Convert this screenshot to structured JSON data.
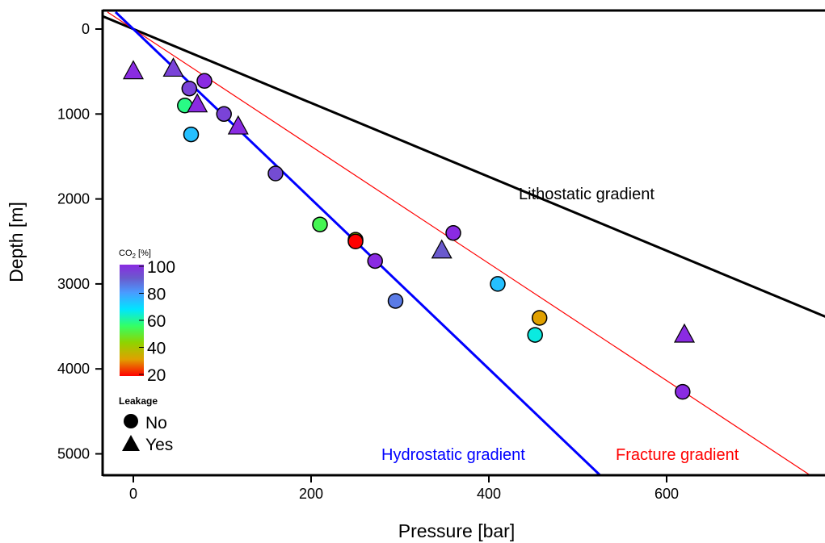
{
  "chart_data": {
    "type": "scatter",
    "xlabel": "Pressure [bar]",
    "ylabel": "Depth [m]",
    "xlim": [
      -35,
      780
    ],
    "ylim": [
      5250,
      -200
    ],
    "x_ticks": [
      0,
      200,
      400,
      600
    ],
    "y_ticks": [
      0,
      1000,
      2000,
      3000,
      4000,
      5000
    ],
    "y_inverted": true,
    "grid": false,
    "gradients": [
      {
        "name": "Lithostatic gradient",
        "color": "#000000",
        "pressure_per_m": 0.23
      },
      {
        "name": "Fracture gradient",
        "color": "#ff0000",
        "pressure_per_m": 0.145
      },
      {
        "name": "Hydrostatic gradient",
        "color": "#0000ff",
        "pressure_per_m": 0.1
      }
    ],
    "colorbar": {
      "title_main": "CO",
      "title_sub": "2",
      "title_unit": " [%]",
      "min": 20,
      "max": 100,
      "ticks": [
        100,
        80,
        60,
        40,
        20
      ]
    },
    "leakage_legend": {
      "title": "Leakage",
      "items": [
        {
          "label": "No",
          "marker": "circle"
        },
        {
          "label": "Yes",
          "marker": "triangle"
        }
      ]
    },
    "points": [
      {
        "pressure": 0,
        "depth": 490,
        "co2": 100,
        "leakage": "Yes"
      },
      {
        "pressure": 45,
        "depth": 460,
        "co2": 95,
        "leakage": "Yes"
      },
      {
        "pressure": 63,
        "depth": 700,
        "co2": 95,
        "leakage": "No"
      },
      {
        "pressure": 80,
        "depth": 610,
        "co2": 100,
        "leakage": "No"
      },
      {
        "pressure": 58,
        "depth": 900,
        "co2": 62,
        "leakage": "No"
      },
      {
        "pressure": 72,
        "depth": 880,
        "co2": 100,
        "leakage": "Yes"
      },
      {
        "pressure": 102,
        "depth": 1000,
        "co2": 95,
        "leakage": "No"
      },
      {
        "pressure": 118,
        "depth": 1140,
        "co2": 100,
        "leakage": "Yes"
      },
      {
        "pressure": 65,
        "depth": 1240,
        "co2": 75,
        "leakage": "No"
      },
      {
        "pressure": 160,
        "depth": 1700,
        "co2": 93,
        "leakage": "No"
      },
      {
        "pressure": 210,
        "depth": 2300,
        "co2": 58,
        "leakage": "No"
      },
      {
        "pressure": 250,
        "depth": 2480,
        "co2": 50,
        "leakage": "No"
      },
      {
        "pressure": 250,
        "depth": 2500,
        "co2": 20,
        "leakage": "No"
      },
      {
        "pressure": 272,
        "depth": 2730,
        "co2": 100,
        "leakage": "No"
      },
      {
        "pressure": 295,
        "depth": 3200,
        "co2": 85,
        "leakage": "No"
      },
      {
        "pressure": 347,
        "depth": 2600,
        "co2": 90,
        "leakage": "Yes"
      },
      {
        "pressure": 360,
        "depth": 2400,
        "co2": 100,
        "leakage": "No"
      },
      {
        "pressure": 410,
        "depth": 3000,
        "co2": 75,
        "leakage": "No"
      },
      {
        "pressure": 457,
        "depth": 3400,
        "co2": 40,
        "leakage": "No"
      },
      {
        "pressure": 452,
        "depth": 3600,
        "co2": 68,
        "leakage": "No"
      },
      {
        "pressure": 618,
        "depth": 4270,
        "co2": 100,
        "leakage": "No"
      },
      {
        "pressure": 620,
        "depth": 3590,
        "co2": 100,
        "leakage": "Yes"
      }
    ]
  }
}
